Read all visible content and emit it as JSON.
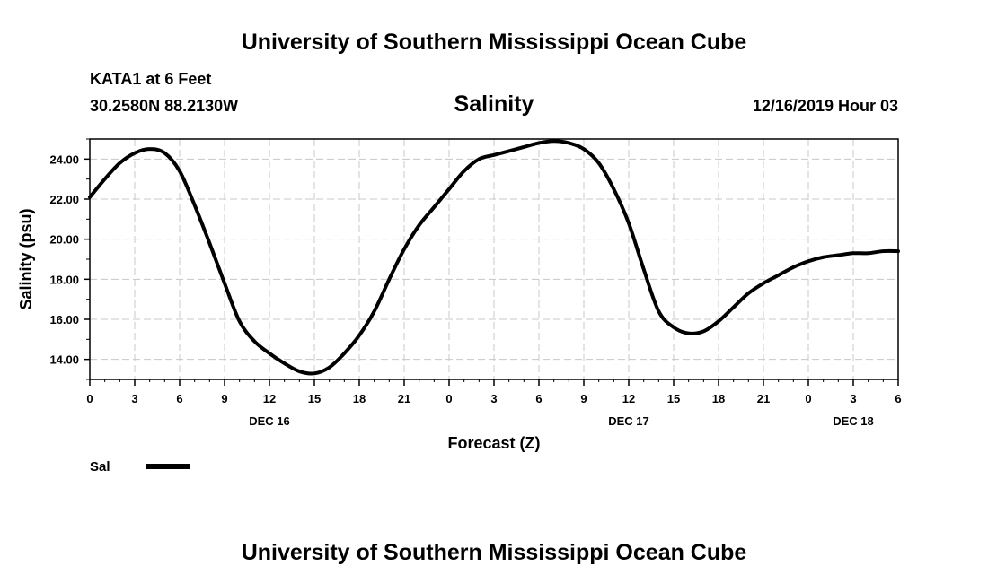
{
  "header": {
    "title_top": "University of Southern Mississippi Ocean Cube",
    "station": "KATA1 at 6 Feet",
    "coords": "30.2580N 88.2130W",
    "timestamp": "12/16/2019 Hour 03"
  },
  "footer": {
    "title_bottom": "University of Southern Mississippi Ocean Cube"
  },
  "legend": {
    "label": "Sal"
  },
  "colors": {
    "line": "#000000",
    "grid": "#c8c8c8"
  },
  "chart_data": {
    "type": "line",
    "title": "Salinity",
    "xlabel": "Forecast (Z)",
    "ylabel": "Salinity (psu)",
    "xlim": [
      0,
      54
    ],
    "ylim": [
      13,
      25
    ],
    "yticks": [
      14,
      16,
      18,
      20,
      22,
      24
    ],
    "ytick_labels": [
      "14.00",
      "16.00",
      "18.00",
      "20.00",
      "22.00",
      "24.00"
    ],
    "xticks": [
      0,
      3,
      6,
      9,
      12,
      15,
      18,
      21,
      24,
      27,
      30,
      33,
      36,
      39,
      42,
      45,
      48,
      51,
      54
    ],
    "xtick_labels": [
      "0",
      "3",
      "6",
      "9",
      "12",
      "15",
      "18",
      "21",
      "0",
      "3",
      "6",
      "9",
      "12",
      "15",
      "18",
      "21",
      "0",
      "3",
      "6"
    ],
    "date_labels": [
      {
        "x": 12,
        "label": "DEC 16"
      },
      {
        "x": 36,
        "label": "DEC 17"
      },
      {
        "x": 51,
        "label": "DEC 18"
      }
    ],
    "grid": true,
    "series": [
      {
        "name": "Sal",
        "x": [
          0,
          1,
          2,
          3,
          4,
          5,
          6,
          7,
          8,
          9,
          10,
          11,
          12,
          13,
          14,
          15,
          16,
          17,
          18,
          19,
          20,
          21,
          22,
          23,
          24,
          25,
          26,
          27,
          28,
          29,
          30,
          31,
          32,
          33,
          34,
          35,
          36,
          37,
          38,
          39,
          40,
          41,
          42,
          43,
          44,
          45,
          46,
          47,
          48,
          49,
          50,
          51,
          52,
          53,
          54
        ],
        "y": [
          22.1,
          23.0,
          23.8,
          24.3,
          24.5,
          24.3,
          23.4,
          21.7,
          19.8,
          17.8,
          15.9,
          14.9,
          14.3,
          13.8,
          13.4,
          13.3,
          13.6,
          14.3,
          15.2,
          16.4,
          18.0,
          19.5,
          20.7,
          21.6,
          22.5,
          23.4,
          24.0,
          24.2,
          24.4,
          24.6,
          24.8,
          24.9,
          24.8,
          24.5,
          23.8,
          22.5,
          20.8,
          18.5,
          16.4,
          15.6,
          15.3,
          15.4,
          15.9,
          16.6,
          17.3,
          17.8,
          18.2,
          18.6,
          18.9,
          19.1,
          19.2,
          19.3,
          19.3,
          19.4,
          19.4
        ]
      }
    ]
  }
}
